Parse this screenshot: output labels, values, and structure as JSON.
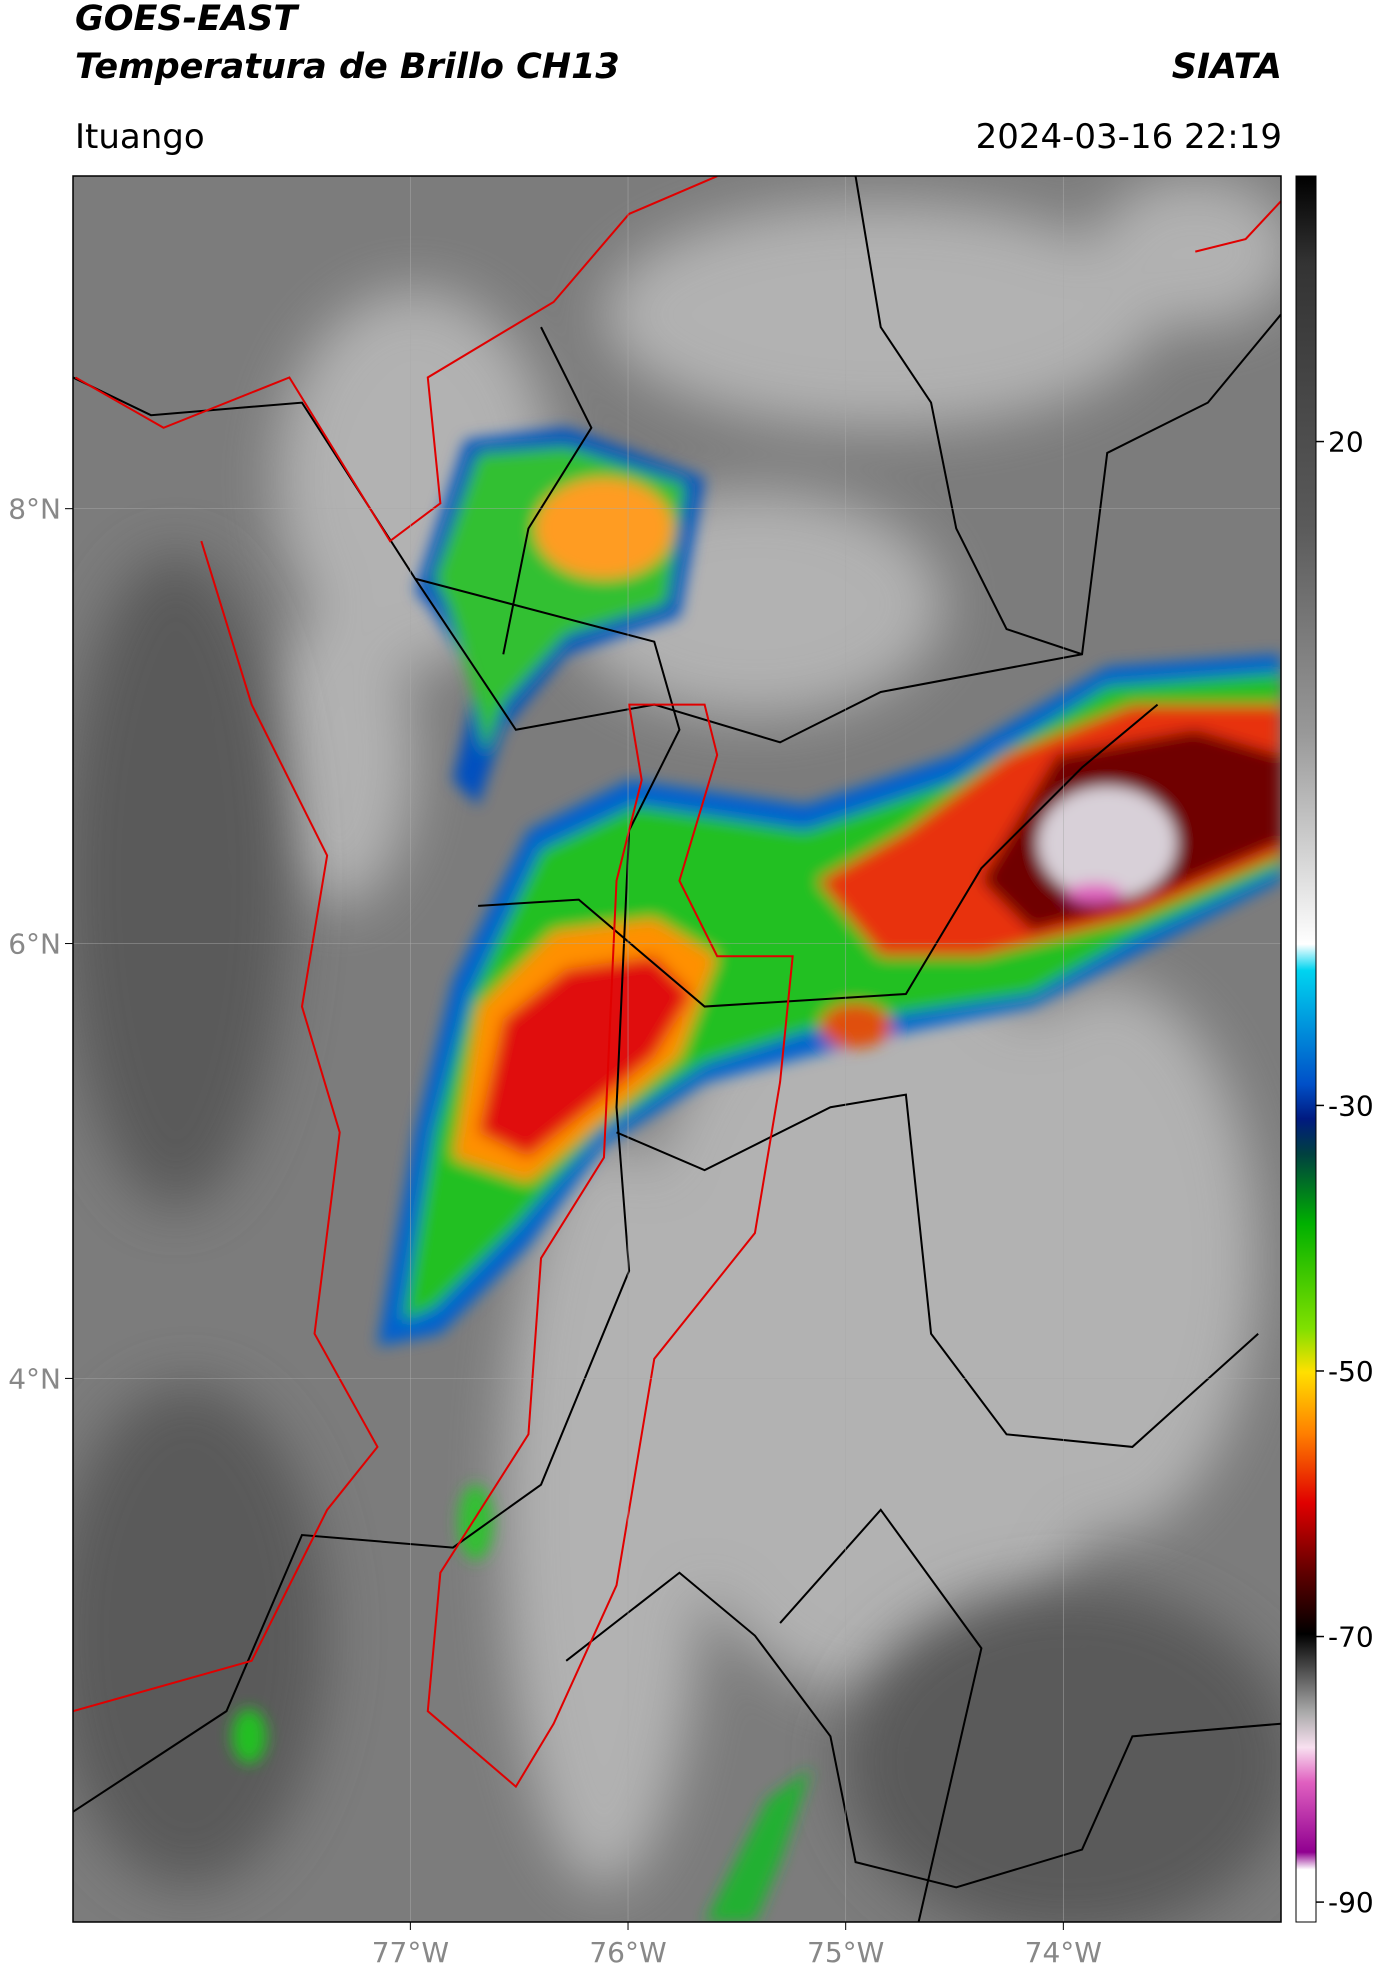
{
  "header": {
    "title_line1": "GOES-EAST",
    "title_line2": "Temperatura de Brillo CH13",
    "agency": "SIATA",
    "location": "Ituango",
    "timestamp": "2024-03-16 22:19"
  },
  "map": {
    "xlim": [
      -78.55,
      -73.0
    ],
    "ylim": [
      1.5,
      9.53
    ],
    "xticks": [
      {
        "value": -77,
        "label": "77°W"
      },
      {
        "value": -76,
        "label": "76°W"
      },
      {
        "value": -75,
        "label": "75°W"
      },
      {
        "value": -74,
        "label": "74°W"
      }
    ],
    "yticks": [
      {
        "value": 8,
        "label": "8°N"
      },
      {
        "value": 6,
        "label": "6°N"
      },
      {
        "value": 4,
        "label": "4°N"
      }
    ],
    "grid": true
  },
  "colorbar": {
    "lim": [
      -91.5,
      40
    ],
    "ticks": [
      20,
      -30,
      -50,
      -70,
      -90
    ]
  }
}
